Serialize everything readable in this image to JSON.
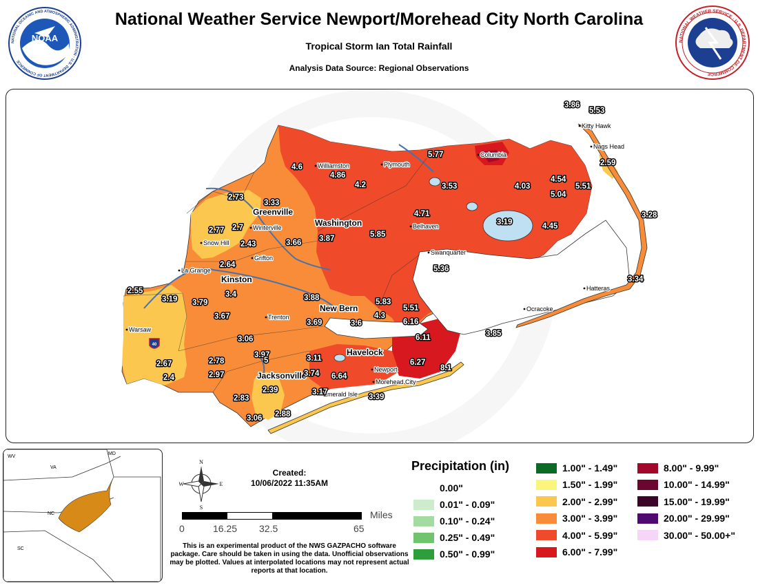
{
  "header": {
    "title": "National Weather Service Newport/Morehead City North Carolina",
    "subtitle": "Tropical Storm Ian Total Rainfall",
    "source": "Analysis Data Source: Regional Observations"
  },
  "logos": {
    "noaa_text": "NOAA",
    "noaa_ring": "NATIONAL OCEANIC AND ATMOSPHERIC ADMINISTRATION · U.S. DEPARTMENT OF COMMERCE",
    "nws_ring": "NATIONAL WEATHER SERVICE · U.S. DEPARTMENT OF COMMERCE"
  },
  "map": {
    "places": [
      {
        "name": "Kitty Hawk"
      },
      {
        "name": "Nags Head"
      },
      {
        "name": "Columbia"
      },
      {
        "name": "Plymouth"
      },
      {
        "name": "Williamston"
      },
      {
        "name": "Greenville"
      },
      {
        "name": "Winterville"
      },
      {
        "name": "Washington"
      },
      {
        "name": "Belhaven"
      },
      {
        "name": "Swanquarter"
      },
      {
        "name": "Snow Hill"
      },
      {
        "name": "Grifton"
      },
      {
        "name": "La Grange"
      },
      {
        "name": "Kinston"
      },
      {
        "name": "Trenton"
      },
      {
        "name": "New Bern"
      },
      {
        "name": "Hatteras"
      },
      {
        "name": "Ocracoke"
      },
      {
        "name": "Warsaw"
      },
      {
        "name": "Havelock"
      },
      {
        "name": "Newport"
      },
      {
        "name": "Morehead City"
      },
      {
        "name": "Jacksonville"
      },
      {
        "name": "Emerald Isle"
      }
    ],
    "values": [
      "3.86",
      "5.53",
      "5.77",
      "4.6",
      "4.86",
      "4.2",
      "3.53",
      "4.03",
      "4.54",
      "5.51",
      "5.04",
      "2.59",
      "2.73",
      "3.33",
      "2.77",
      "2.7",
      "2.43",
      "3.66",
      "3.87",
      "4.71",
      "5.85",
      "3.19",
      "4.45",
      "3.28",
      "2.64",
      "3.4",
      "2.55",
      "3.19",
      "3.79",
      "3.67",
      "3.88",
      "3.69",
      "3.6",
      "4.3",
      "5.83",
      "5.51",
      "6.16",
      "5.36",
      "3.34",
      "3.85",
      "3.06",
      "3.97",
      "5",
      "3.11",
      "2.67",
      "2.4",
      "2.78",
      "2.97",
      "6.11",
      "6.27",
      "8.1",
      "6.64",
      "3.74",
      "2.39",
      "3.17",
      "2.83",
      "3.39",
      "3.06",
      "2.88"
    ],
    "highway": "40"
  },
  "inset": {
    "states": [
      "WV",
      "MD",
      "VA",
      "NC",
      "SC"
    ]
  },
  "compass": {
    "n": "N",
    "s": "S",
    "e": "E",
    "w": "W"
  },
  "created": {
    "label": "Created:",
    "timestamp": "10/06/2022 11:35AM"
  },
  "scale": {
    "unit": "Miles",
    "ticks": [
      "0",
      "16.25",
      "32.5",
      "65"
    ]
  },
  "disclaimer": "This is an experimental product of the NWS GAZPACHO software package. Care should be taken in using the data. Unofficial observations may be plotted. Values at interpolated locations may not represent actual reports at that location.",
  "legend": {
    "title": "Precipitation (in)",
    "items": [
      {
        "label": "0.00\"",
        "color": "#ffffff"
      },
      {
        "label": "0.01\" - 0.09\"",
        "color": "#cdeccc"
      },
      {
        "label": "0.10\" - 0.24\"",
        "color": "#a3dba0"
      },
      {
        "label": "0.25\" - 0.49\"",
        "color": "#6fc46d"
      },
      {
        "label": "0.50\" - 0.99\"",
        "color": "#2e9e3c"
      },
      {
        "label": "1.00\" - 1.49\"",
        "color": "#0b6b25"
      },
      {
        "label": "1.50\" - 1.99\"",
        "color": "#fbf57e"
      },
      {
        "label": "2.00\" - 2.99\"",
        "color": "#fcc74f"
      },
      {
        "label": "3.00\" - 3.99\"",
        "color": "#f98c38"
      },
      {
        "label": "4.00\" - 5.99\"",
        "color": "#ef4a29"
      },
      {
        "label": "6.00\" - 7.99\"",
        "color": "#d7191f"
      },
      {
        "label": "8.00\" - 9.99\"",
        "color": "#a3082b"
      },
      {
        "label": "10.00\" - 14.99\"",
        "color": "#6a0630"
      },
      {
        "label": "15.00\" - 19.99\"",
        "color": "#3b0428"
      },
      {
        "label": "20.00\" - 29.99\"",
        "color": "#4e0a6e"
      },
      {
        "label": "30.00\" - 50.00+\"",
        "color": "#f6d6f6"
      }
    ]
  }
}
